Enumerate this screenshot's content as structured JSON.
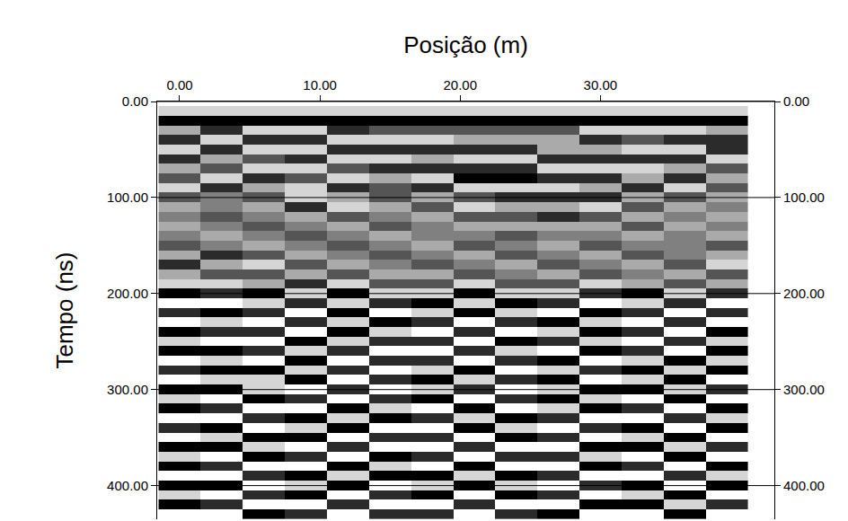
{
  "chart_data": {
    "type": "heatmap",
    "x_label": "Posição (m)",
    "y_label": "Tempo (ns)",
    "xlim": [
      -1.6,
      42.4
    ],
    "ylim": [
      435,
      0
    ],
    "xticks": [
      {
        "value": 0,
        "label": "0.00"
      },
      {
        "value": 10,
        "label": "10.00"
      },
      {
        "value": 20,
        "label": "20.00"
      },
      {
        "value": 30,
        "label": "30.00"
      }
    ],
    "yticks": [
      {
        "value": 0,
        "label": "0.00"
      },
      {
        "value": 100,
        "label": "100.00"
      },
      {
        "value": 200,
        "label": "200.00"
      },
      {
        "value": 300,
        "label": "300.00"
      },
      {
        "value": 400,
        "label": "400.00"
      }
    ],
    "grid": true,
    "x": [
      0,
      3,
      6,
      9,
      12,
      15,
      18,
      21,
      24,
      27,
      30,
      33,
      36,
      39
    ],
    "y": [
      0,
      10,
      20,
      30,
      40,
      50,
      60,
      70,
      80,
      90,
      100,
      110,
      120,
      130,
      140,
      150,
      160,
      170,
      180,
      190,
      200,
      210,
      220,
      230,
      240,
      250,
      260,
      270,
      280,
      290,
      300,
      310,
      320,
      330,
      340,
      350,
      360,
      370,
      380,
      390,
      400,
      410,
      420,
      430
    ],
    "cells": [
      [
        3,
        3,
        3,
        3,
        3,
        3,
        3,
        3,
        3,
        3,
        3,
        3,
        3,
        3
      ],
      [
        2,
        2,
        2,
        2,
        2,
        2,
        2,
        2,
        2,
        2,
        2,
        2,
        2,
        2
      ],
      [
        -3,
        -3,
        -3,
        -3,
        -3,
        -3,
        -3,
        -3,
        -3,
        -3,
        -3,
        -3,
        -3,
        -3
      ],
      [
        1,
        -2,
        2,
        2,
        -2,
        -1,
        -1,
        -1,
        -1,
        -1,
        2,
        2,
        2,
        1
      ],
      [
        -2,
        2,
        -2,
        -2,
        2,
        2,
        2,
        1,
        1,
        1,
        -2,
        -1,
        -2,
        -2
      ],
      [
        2,
        -2,
        2,
        2,
        -2,
        -2,
        -2,
        -2,
        -2,
        1,
        1,
        2,
        2,
        -2
      ],
      [
        -2,
        1,
        -1,
        -2,
        2,
        2,
        1,
        2,
        2,
        -2,
        -2,
        -2,
        -2,
        2
      ],
      [
        1,
        -1,
        2,
        2,
        -1,
        -2,
        -2,
        -2,
        -2,
        2,
        2,
        2,
        1,
        -1
      ],
      [
        -1,
        2,
        -2,
        -1,
        2,
        1,
        2,
        -3,
        -3,
        -2,
        -2,
        1,
        -2,
        1
      ],
      [
        2,
        -2,
        1,
        2,
        -2,
        -1,
        -2,
        2,
        2,
        2,
        1,
        -2,
        2,
        -1
      ],
      [
        -1,
        0,
        -1,
        2,
        1,
        -1,
        1,
        -1,
        -2,
        -2,
        -2,
        1,
        -1,
        1
      ],
      [
        1,
        0,
        1,
        -2,
        2,
        1,
        -1,
        2,
        1,
        1,
        2,
        -1,
        1,
        0
      ],
      [
        0,
        -1,
        0,
        1,
        -1,
        0,
        1,
        -1,
        -1,
        -2,
        -1,
        1,
        0,
        1
      ],
      [
        1,
        0,
        -1,
        0,
        1,
        -1,
        0,
        1,
        1,
        1,
        1,
        -1,
        1,
        0
      ],
      [
        0,
        1,
        0,
        -1,
        0,
        1,
        0,
        0,
        -1,
        0,
        0,
        1,
        0,
        1
      ],
      [
        -1,
        0,
        1,
        0,
        -1,
        0,
        1,
        -1,
        0,
        1,
        -1,
        0,
        0,
        -1
      ],
      [
        1,
        -2,
        -1,
        1,
        0,
        -1,
        0,
        1,
        -1,
        0,
        1,
        -1,
        0,
        1
      ],
      [
        -2,
        1,
        2,
        -1,
        1,
        0,
        -1,
        0,
        1,
        -1,
        0,
        1,
        -1,
        2
      ],
      [
        1,
        -1,
        -1,
        1,
        -1,
        1,
        1,
        -1,
        0,
        1,
        -1,
        0,
        1,
        -1
      ],
      [
        2,
        2,
        1,
        -2,
        2,
        -1,
        -1,
        2,
        -1,
        -1,
        2,
        1,
        -1,
        1
      ],
      [
        -3,
        -2,
        -3,
        2,
        -3,
        2,
        2,
        -3,
        2,
        2,
        -2,
        -3,
        2,
        -2
      ],
      [
        3,
        3,
        2,
        -2,
        2,
        -2,
        -3,
        2,
        -3,
        -2,
        3,
        2,
        -2,
        3
      ],
      [
        -2,
        -3,
        -2,
        3,
        -3,
        3,
        2,
        -3,
        2,
        3,
        -3,
        -2,
        3,
        -2
      ],
      [
        3,
        2,
        3,
        -2,
        2,
        -3,
        -2,
        3,
        -2,
        -3,
        2,
        3,
        -2,
        3
      ],
      [
        -3,
        -2,
        -2,
        3,
        -3,
        2,
        3,
        -2,
        3,
        2,
        -3,
        -2,
        3,
        -3
      ],
      [
        2,
        3,
        3,
        -3,
        2,
        -2,
        -2,
        3,
        -3,
        -2,
        2,
        3,
        -2,
        2
      ],
      [
        -3,
        -3,
        -2,
        2,
        -2,
        3,
        3,
        -2,
        2,
        3,
        -3,
        -2,
        3,
        -3
      ],
      [
        3,
        2,
        3,
        -3,
        3,
        -2,
        -2,
        3,
        -2,
        -3,
        3,
        2,
        -3,
        2
      ],
      [
        -2,
        -3,
        -3,
        2,
        -2,
        3,
        2,
        -3,
        3,
        2,
        -2,
        -3,
        2,
        -3
      ],
      [
        3,
        2,
        2,
        -3,
        3,
        -2,
        -3,
        2,
        -2,
        -3,
        3,
        2,
        -3,
        3
      ],
      [
        -3,
        -3,
        2,
        3,
        -2,
        3,
        2,
        -2,
        3,
        2,
        -3,
        -3,
        2,
        -2
      ],
      [
        2,
        3,
        -3,
        -2,
        3,
        -2,
        -3,
        3,
        -2,
        -3,
        2,
        3,
        -3,
        3
      ],
      [
        -3,
        -2,
        3,
        3,
        -3,
        2,
        3,
        -3,
        3,
        2,
        -3,
        -2,
        3,
        -3
      ],
      [
        3,
        3,
        -2,
        -3,
        2,
        -3,
        -2,
        2,
        -3,
        -2,
        3,
        3,
        -2,
        2
      ],
      [
        -2,
        -3,
        3,
        2,
        -3,
        3,
        3,
        -3,
        2,
        3,
        -2,
        -3,
        3,
        -3
      ],
      [
        3,
        2,
        -3,
        -3,
        3,
        -2,
        -2,
        3,
        -3,
        -2,
        3,
        2,
        -3,
        3
      ],
      [
        -3,
        -3,
        2,
        3,
        -2,
        3,
        3,
        -2,
        3,
        3,
        -3,
        -3,
        2,
        -2
      ],
      [
        2,
        3,
        -3,
        -2,
        3,
        -3,
        -2,
        3,
        -2,
        -2,
        2,
        3,
        -3,
        3
      ],
      [
        -3,
        -2,
        3,
        3,
        -3,
        2,
        3,
        -3,
        3,
        3,
        -3,
        -2,
        3,
        -3
      ],
      [
        3,
        3,
        -2,
        -3,
        2,
        -3,
        -3,
        2,
        -3,
        -2,
        3,
        3,
        -2,
        2
      ],
      [
        -3,
        -3,
        3,
        2,
        -3,
        3,
        2,
        -3,
        2,
        3,
        -2,
        -3,
        3,
        -3
      ],
      [
        2,
        3,
        -2,
        -3,
        3,
        -2,
        -3,
        3,
        -3,
        -2,
        3,
        2,
        -3,
        3
      ],
      [
        -3,
        -2,
        3,
        3,
        -2,
        3,
        3,
        -2,
        3,
        3,
        -3,
        -3,
        2,
        -2
      ],
      [
        3,
        3,
        -3,
        -2,
        3,
        -2,
        -2,
        3,
        -2,
        -3,
        3,
        3,
        -3,
        3
      ]
    ]
  }
}
